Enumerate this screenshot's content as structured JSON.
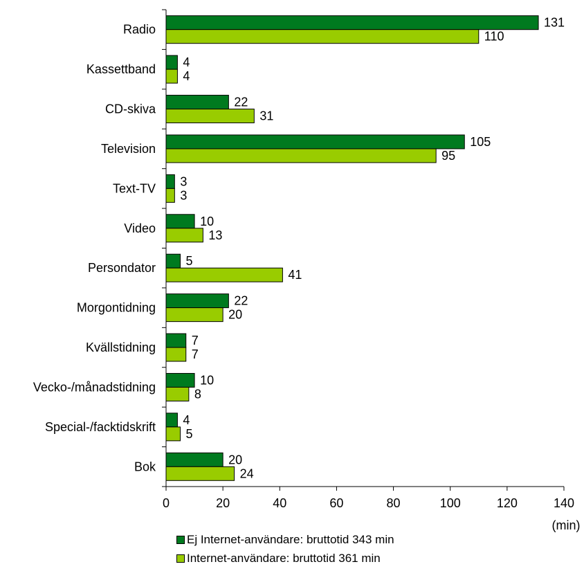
{
  "chart_data": {
    "type": "bar",
    "orientation": "horizontal",
    "categories": [
      "Radio",
      "Kassettband",
      "CD-skiva",
      "Television",
      "Text-TV",
      "Video",
      "Persondator",
      "Morgontidning",
      "Kvällstidning",
      "Vecko-/månadstidning",
      "Special-/facktidskrift",
      "Bok"
    ],
    "series": [
      {
        "name": "Ej Internet-användare: bruttotid 343 min",
        "color": "#007a1f",
        "values": [
          131,
          4,
          22,
          105,
          3,
          10,
          5,
          22,
          7,
          10,
          4,
          20
        ]
      },
      {
        "name": "Internet-användare: bruttotid 361 min",
        "color": "#99cc00",
        "values": [
          110,
          4,
          31,
          95,
          3,
          13,
          41,
          20,
          7,
          8,
          5,
          24
        ]
      }
    ],
    "xlim": [
      0,
      140
    ],
    "xticks": [
      0,
      20,
      40,
      60,
      80,
      100,
      120,
      140
    ],
    "xlabel": "(min)",
    "grid": false,
    "legend_position": "bottom"
  }
}
